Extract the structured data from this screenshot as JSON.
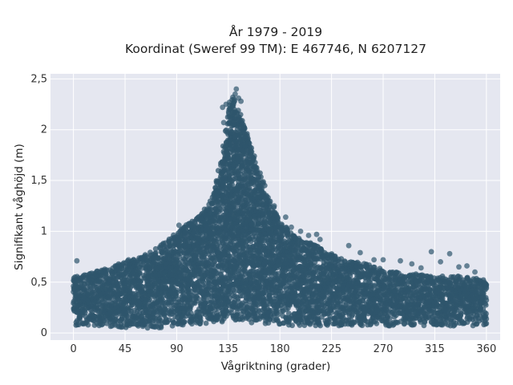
{
  "chart_data": {
    "type": "scatter",
    "title": "År 1979 - 2019",
    "subtitle": "Koordinat (Sweref 99 TM): E 467746, N 6207127",
    "xlabel": "Vågriktning (grader)",
    "ylabel": "Signifikant våghöjd (m)",
    "xlim": [
      -20,
      372
    ],
    "ylim": [
      -0.07,
      2.55
    ],
    "x_ticks": [
      0,
      45,
      90,
      135,
      180,
      225,
      270,
      315,
      360
    ],
    "x_tick_labels": [
      "0",
      "45",
      "90",
      "135",
      "180",
      "225",
      "270",
      "315",
      "360"
    ],
    "y_ticks": [
      0,
      0.5,
      1,
      1.5,
      2,
      2.5
    ],
    "y_tick_labels": [
      "0",
      "0,5",
      "1",
      "1,5",
      "2",
      "2,5"
    ],
    "grid": true,
    "legend": "none",
    "colors": {
      "marker": "#2f566c",
      "plot_background": "#e5e7f0",
      "grid": "#ffffff"
    },
    "series": [
      {
        "x": [
          0,
          5,
          10,
          20,
          30,
          40,
          45,
          50,
          60,
          70,
          80,
          90,
          100,
          110,
          120,
          125,
          130,
          135,
          138,
          140,
          143,
          145,
          150,
          155,
          160,
          170,
          180,
          190,
          200,
          210,
          220,
          225,
          235,
          245,
          255,
          265,
          270,
          280,
          290,
          300,
          310,
          315,
          325,
          335,
          345,
          355,
          360
        ],
        "y_min": [
          0.08,
          0.07,
          0.07,
          0.06,
          0.06,
          0.05,
          0.05,
          0.04,
          0.03,
          0.04,
          0.06,
          0.07,
          0.08,
          0.09,
          0.1,
          0.1,
          0.1,
          0.1,
          0.1,
          0.1,
          0.1,
          0.1,
          0.1,
          0.1,
          0.1,
          0.09,
          0.08,
          0.07,
          0.07,
          0.07,
          0.07,
          0.07,
          0.07,
          0.07,
          0.07,
          0.07,
          0.07,
          0.07,
          0.07,
          0.07,
          0.07,
          0.07,
          0.07,
          0.07,
          0.07,
          0.07,
          0.08
        ],
        "y_max": [
          0.55,
          0.57,
          0.58,
          0.62,
          0.64,
          0.68,
          0.7,
          0.72,
          0.75,
          0.82,
          0.9,
          0.98,
          1.08,
          1.15,
          1.3,
          1.5,
          1.75,
          2.2,
          2.3,
          2.3,
          2.2,
          2.15,
          2.0,
          1.85,
          1.65,
          1.35,
          1.1,
          0.98,
          0.9,
          0.88,
          0.8,
          0.78,
          0.72,
          0.7,
          0.68,
          0.65,
          0.62,
          0.6,
          0.58,
          0.58,
          0.57,
          0.56,
          0.56,
          0.56,
          0.55,
          0.53,
          0.52
        ],
        "outliers": [
          [
            3,
            0.71
          ],
          [
            48,
            0.72
          ],
          [
            92,
            1.06
          ],
          [
            97,
            0.98
          ],
          [
            103,
            1.06
          ],
          [
            110,
            1.12
          ],
          [
            118,
            1.2
          ],
          [
            130,
            2.22
          ],
          [
            133,
            2.25
          ],
          [
            136,
            2.27
          ],
          [
            139,
            2.32
          ],
          [
            141,
            2.35
          ],
          [
            142,
            2.4
          ],
          [
            144,
            2.31
          ],
          [
            146,
            2.28
          ],
          [
            131,
            2.07
          ],
          [
            148,
            1.98
          ],
          [
            153,
            1.74
          ],
          [
            160,
            1.6
          ],
          [
            168,
            1.32
          ],
          [
            175,
            1.25
          ],
          [
            185,
            1.14
          ],
          [
            190,
            1.04
          ],
          [
            198,
            1.0
          ],
          [
            205,
            0.96
          ],
          [
            212,
            0.97
          ],
          [
            215,
            0.92
          ],
          [
            240,
            0.86
          ],
          [
            250,
            0.79
          ],
          [
            262,
            0.72
          ],
          [
            270,
            0.72
          ],
          [
            285,
            0.71
          ],
          [
            295,
            0.68
          ],
          [
            303,
            0.64
          ],
          [
            312,
            0.8
          ],
          [
            320,
            0.7
          ],
          [
            328,
            0.78
          ],
          [
            336,
            0.65
          ],
          [
            343,
            0.66
          ],
          [
            350,
            0.6
          ]
        ]
      }
    ]
  }
}
